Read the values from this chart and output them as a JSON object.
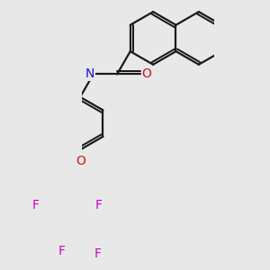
{
  "bg_color": "#e8e8e8",
  "bond_color": "#1a1a1a",
  "N_color": "#1414cc",
  "O_color": "#cc1414",
  "F_color": "#cc00cc",
  "bond_width": 1.6,
  "figsize": [
    3.0,
    3.0
  ],
  "dpi": 100,
  "xlim": [
    -1.5,
    3.5
  ],
  "ylim": [
    -3.8,
    3.2
  ]
}
